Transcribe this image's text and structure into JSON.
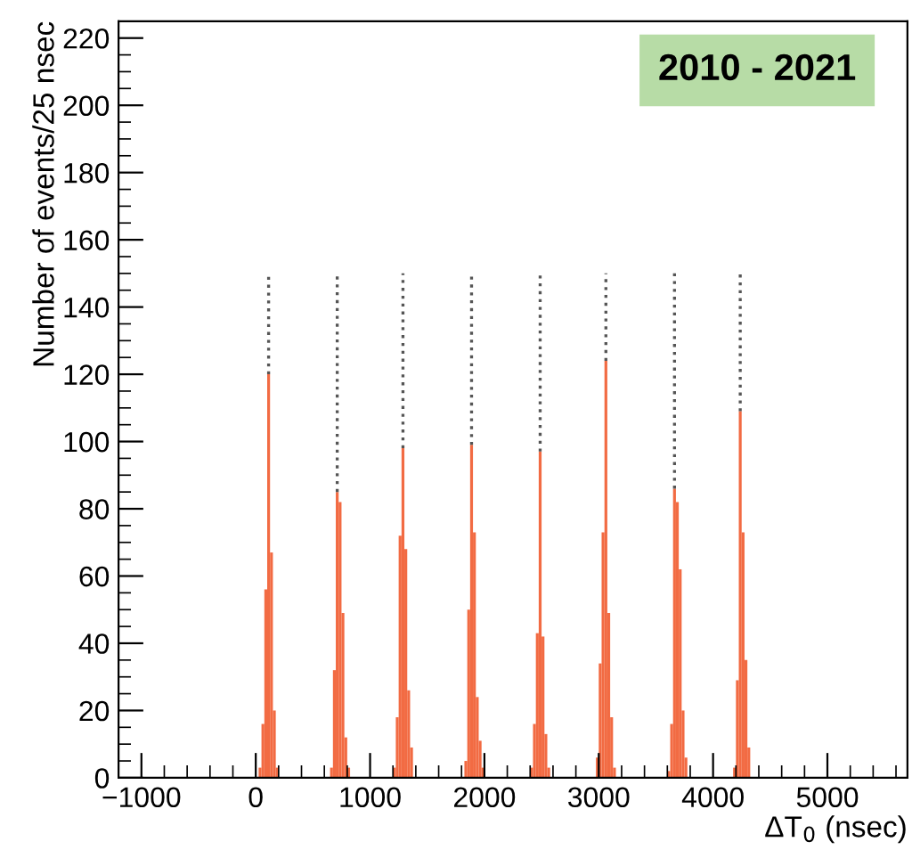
{
  "chart_data": {
    "type": "histogram",
    "xlabel": "ΔT$_{0}$ (nsec)",
    "ylabel": "Number of events/25 nsec",
    "annotations": [
      "2010 - 2021"
    ],
    "bins": [
      25,
      50,
      75,
      100,
      125,
      150,
      175,
      200,
      650,
      675,
      700,
      725,
      750,
      775,
      800,
      825,
      1200,
      1225,
      1250,
      1275,
      1300,
      1325,
      1350,
      1375,
      1825,
      1850,
      1875,
      1900,
      1925,
      1950,
      1975,
      2000,
      2400,
      2425,
      2450,
      2475,
      2500,
      2525,
      2550,
      2575,
      2975,
      3000,
      3025,
      3050,
      3075,
      3100,
      3125,
      3150,
      3600,
      3625,
      3650,
      3675,
      3700,
      3725,
      3750,
      3775,
      4175,
      4200,
      4225,
      4250,
      4275,
      4300,
      4325
    ],
    "values": [
      3,
      16,
      56,
      120,
      67,
      20,
      3,
      0,
      3,
      32,
      85,
      82,
      49,
      12,
      3,
      0,
      3,
      18,
      72,
      98,
      68,
      26,
      9,
      0,
      5,
      50,
      99,
      73,
      24,
      11,
      3,
      0,
      3,
      16,
      43,
      97,
      42,
      13,
      3,
      0,
      6,
      34,
      73,
      124,
      49,
      18,
      3,
      0,
      2,
      16,
      86,
      82,
      62,
      20,
      6,
      0,
      3,
      29,
      109,
      73,
      35,
      9
    ],
    "color": "#f26b43",
    "series": [
      {
        "type": "line",
        "color": "#555555",
        "line_style": "dotted",
        "marker": "none",
        "x": [
          112.5,
          112.5
        ],
        "values": [
          120,
          150
        ]
      },
      {
        "type": "line",
        "color": "#555555",
        "line_style": "dotted",
        "marker": "none",
        "x": [
          712.5,
          712.5
        ],
        "values": [
          85,
          150
        ]
      },
      {
        "type": "line",
        "color": "#555555",
        "line_style": "dotted",
        "marker": "none",
        "x": [
          1287.5,
          1287.5
        ],
        "values": [
          98,
          150
        ]
      },
      {
        "type": "line",
        "color": "#555555",
        "line_style": "dotted",
        "marker": "none",
        "x": [
          1887.5,
          1887.5
        ],
        "values": [
          99,
          150
        ]
      },
      {
        "type": "line",
        "color": "#555555",
        "line_style": "dotted",
        "marker": "none",
        "x": [
          2487.5,
          2487.5
        ],
        "values": [
          97,
          150
        ]
      },
      {
        "type": "line",
        "color": "#555555",
        "line_style": "dotted",
        "marker": "none",
        "x": [
          3062.5,
          3062.5
        ],
        "values": [
          124,
          150
        ]
      },
      {
        "type": "line",
        "color": "#555555",
        "line_style": "dotted",
        "marker": "none",
        "x": [
          3662.5,
          3662.5
        ],
        "values": [
          86,
          150
        ]
      },
      {
        "type": "line",
        "color": "#555555",
        "line_style": "dotted",
        "marker": "none",
        "x": [
          4237.5,
          4237.5
        ],
        "values": [
          109,
          150
        ]
      }
    ],
    "xlim": [
      -1200,
      5700
    ],
    "ylim": [
      0,
      225
    ],
    "xticks": [
      {
        "value": -1000,
        "label": "−1000"
      },
      0,
      1000,
      2000,
      3000,
      4000,
      5000
    ],
    "yticks": [
      0,
      20,
      40,
      60,
      80,
      100,
      120,
      140,
      160,
      180,
      200,
      220
    ],
    "grid": false,
    "legend": false
  }
}
